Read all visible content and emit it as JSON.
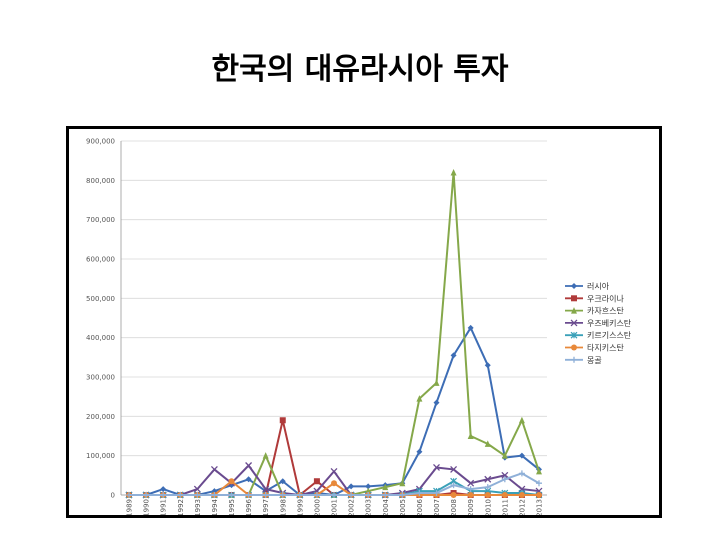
{
  "slide": {
    "title": "한국의 대유라시아 투자"
  },
  "chart_data": {
    "type": "line",
    "title": "",
    "xlabel": "",
    "ylabel": "",
    "ylim": [
      0,
      900000
    ],
    "yticks": [
      "0",
      "100,000",
      "200,000",
      "300,000",
      "400,000",
      "500,000",
      "600,000",
      "700,000",
      "800,000",
      "900,000"
    ],
    "grid": "horizontal",
    "legend_position": "right",
    "categories": [
      "1989",
      "1990",
      "1991",
      "1992",
      "1993",
      "1994",
      "1995",
      "1996",
      "1997",
      "1998",
      "1999",
      "2000",
      "2001",
      "2002",
      "2003",
      "2004",
      "2005",
      "2006",
      "2007",
      "2008",
      "2009",
      "2010",
      "2011",
      "2012",
      "2013"
    ],
    "series": [
      {
        "name": "러시아",
        "color": "#3d6db5",
        "marker": "diamond",
        "values": [
          0,
          0,
          15000,
          0,
          0,
          10000,
          25000,
          40000,
          10000,
          35000,
          0,
          5000,
          0,
          22000,
          22000,
          25000,
          30000,
          110000,
          235000,
          355000,
          425000,
          330000,
          95000,
          100000,
          65000
        ]
      },
      {
        "name": "우크라이나",
        "color": "#b03a3a",
        "marker": "square",
        "values": [
          0,
          0,
          0,
          0,
          0,
          0,
          0,
          0,
          0,
          190000,
          0,
          35000,
          0,
          0,
          0,
          0,
          0,
          0,
          0,
          5000,
          0,
          0,
          0,
          0,
          0
        ]
      },
      {
        "name": "카자흐스탄",
        "color": "#85a84a",
        "marker": "triangle",
        "values": [
          0,
          0,
          0,
          0,
          0,
          0,
          0,
          0,
          100000,
          0,
          0,
          0,
          0,
          0,
          10000,
          20000,
          30000,
          245000,
          285000,
          820000,
          150000,
          130000,
          100000,
          190000,
          60000
        ]
      },
      {
        "name": "우즈베키스탄",
        "color": "#6a4b8f",
        "marker": "x",
        "values": [
          0,
          0,
          0,
          0,
          15000,
          65000,
          30000,
          75000,
          15000,
          5000,
          0,
          10000,
          60000,
          0,
          0,
          0,
          5000,
          15000,
          70000,
          65000,
          30000,
          40000,
          50000,
          15000,
          10000
        ]
      },
      {
        "name": "키르기스스탄",
        "color": "#3aa0b8",
        "marker": "star",
        "values": [
          0,
          0,
          0,
          0,
          0,
          0,
          0,
          0,
          0,
          0,
          0,
          0,
          0,
          0,
          0,
          0,
          0,
          10000,
          10000,
          35000,
          10000,
          10000,
          5000,
          5000,
          0
        ]
      },
      {
        "name": "타지키스탄",
        "color": "#e8893a",
        "marker": "circle",
        "values": [
          0,
          0,
          0,
          0,
          0,
          0,
          35000,
          0,
          0,
          0,
          0,
          0,
          30000,
          0,
          0,
          0,
          0,
          0,
          0,
          0,
          0,
          0,
          0,
          0,
          0
        ]
      },
      {
        "name": "몽골",
        "color": "#8fb0d8",
        "marker": "plus",
        "values": [
          0,
          0,
          0,
          0,
          0,
          0,
          0,
          0,
          0,
          0,
          0,
          0,
          0,
          0,
          0,
          0,
          0,
          5000,
          5000,
          25000,
          15000,
          20000,
          40000,
          55000,
          30000
        ]
      }
    ]
  }
}
